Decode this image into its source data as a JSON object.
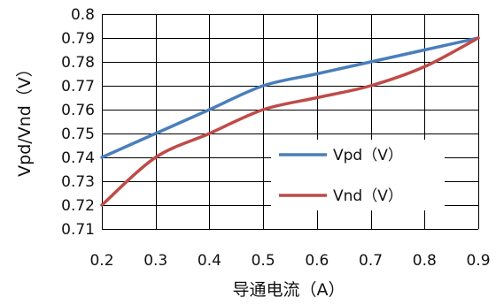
{
  "chart_data": {
    "type": "line",
    "title": "",
    "xlabel": "导通电流（A）",
    "ylabel": "Vpd/Vnd（V）",
    "x": [
      0.2,
      0.3,
      0.4,
      0.5,
      0.6,
      0.7,
      0.8,
      0.9
    ],
    "x_tick_labels": [
      "0.2",
      "0.3",
      "0.4",
      "0.5",
      "0.6",
      "0.7",
      "0.8",
      "0.9"
    ],
    "y_tick_labels": [
      "0.71",
      "0.72",
      "0.73",
      "0.74",
      "0.75",
      "0.76",
      "0.77",
      "0.78",
      "0.79",
      "0.8"
    ],
    "xlim": [
      0.2,
      0.9
    ],
    "ylim": [
      0.71,
      0.8
    ],
    "grid": true,
    "legend_position": "right-inside",
    "series": [
      {
        "name": "Vpd（V）",
        "color": "#4a7ebb",
        "values": [
          0.74,
          0.75,
          0.76,
          0.77,
          0.775,
          0.78,
          0.785,
          0.79
        ]
      },
      {
        "name": "Vnd（V）",
        "color": "#be4b48",
        "values": [
          0.72,
          0.74,
          0.75,
          0.76,
          0.765,
          0.77,
          0.778,
          0.79
        ]
      }
    ]
  }
}
